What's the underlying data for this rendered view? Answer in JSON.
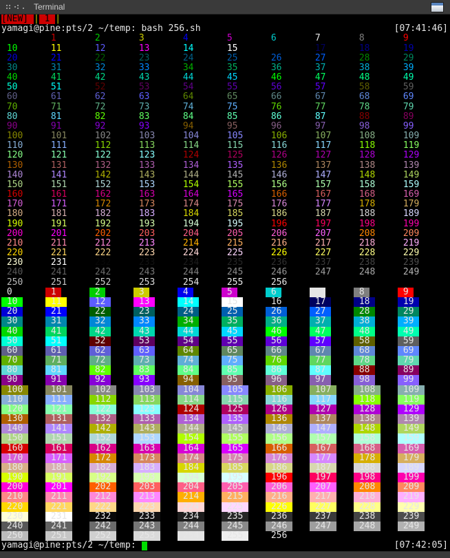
{
  "titlebar": {
    "title": "Terminal",
    "icons": [
      "window-menu-dots-icon",
      "window-menu-dots-icon-2",
      "window-menu-dot-icon"
    ],
    "window_button_icon": "window-icon"
  },
  "status_bar": {
    "alert_label": "[NEW] ",
    "separator": "|",
    "window_number": " 1 ",
    "alert_bg": "#cd0000",
    "alert_text_color": "#000000",
    "separator_color": "#cdcd00"
  },
  "session": {
    "prompt_first": "yamagi@pine:pts/2 ~/temp: bash 256.sh",
    "time_first": "[07:41:46]",
    "prompt_last": "yamagi@pine:pts/2 ~/temp:",
    "time_last": "[07:42:05]"
  },
  "terminal_colors": {
    "background": "#000000",
    "foreground": "#e6e6e6",
    "cursor": "#00dd00",
    "titlebar_bg": "#3a3a3a",
    "titlebar_text": "#cdcdcd"
  },
  "color_test": {
    "columns_per_row": 10,
    "first_index": 0,
    "last_index": 256,
    "cell_text_format": " {n} ",
    "sections": [
      "foreground",
      "background"
    ],
    "ansi16": [
      "#000000",
      "#cd0000",
      "#00cd00",
      "#cdcd00",
      "#0000ee",
      "#cd00cd",
      "#00cdcd",
      "#e5e5e5",
      "#7f7f7f",
      "#ff0000",
      "#00ff00",
      "#ffff00",
      "#5c5cff",
      "#ff00ff",
      "#00ffff",
      "#ffffff"
    ],
    "cube_first_index": 16,
    "cube_levels": [
      0,
      95,
      135,
      175,
      215,
      255
    ],
    "grayscale_ramp": {
      "first_index": 232,
      "count": 24,
      "start_value": 8,
      "step": 10
    }
  }
}
